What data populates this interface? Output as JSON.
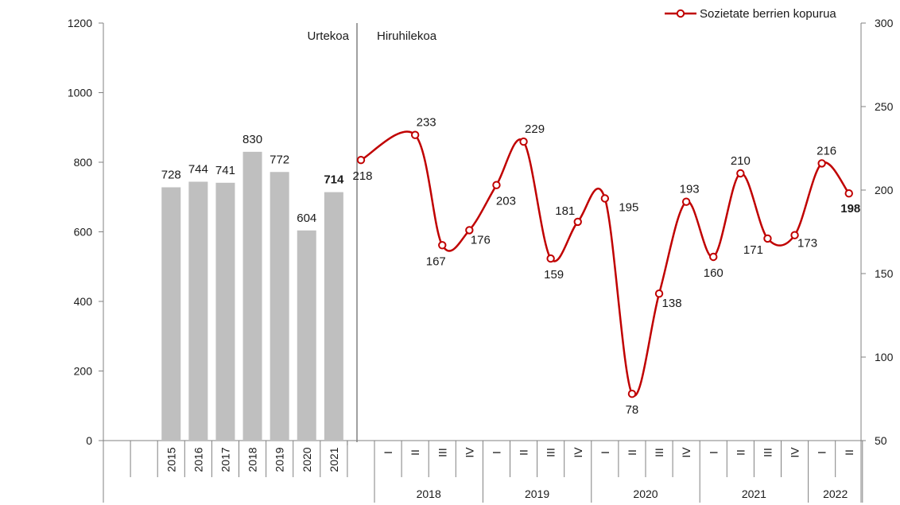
{
  "chart_data": {
    "type": "bar+line",
    "left_axis": {
      "ticks": [
        "0",
        "200",
        "400",
        "600",
        "800",
        "1000",
        "1200"
      ],
      "ylim": [
        0,
        1200
      ]
    },
    "right_axis": {
      "ticks": [
        "50",
        "100",
        "150",
        "200",
        "250",
        "300"
      ],
      "ylim": [
        50,
        300
      ]
    },
    "section_labels": {
      "annual": "Urtekoa",
      "quarterly": "Hiruhilekoa"
    },
    "bars": {
      "categories": [
        "2015",
        "2016",
        "2017",
        "2018",
        "2019",
        "2020",
        "2021"
      ],
      "values": [
        728,
        744,
        741,
        830,
        772,
        604,
        714
      ],
      "labels": [
        "728",
        "744",
        "741",
        "830",
        "772",
        "604",
        "714"
      ],
      "bold_last": true,
      "color": "#bfbfbf"
    },
    "line": {
      "name": "Sozietate berrien kopurua",
      "color": "#c00000",
      "quarters": [
        "I",
        "II",
        "III",
        "IV",
        "I",
        "II",
        "III",
        "IV",
        "I",
        "II",
        "III",
        "IV",
        "I",
        "II",
        "III",
        "IV",
        "I",
        "II"
      ],
      "years": [
        "2018",
        "2019",
        "2020",
        "2021",
        "2022"
      ],
      "values": [
        218,
        233,
        167,
        176,
        203,
        229,
        159,
        181,
        195,
        78,
        138,
        193,
        160,
        210,
        171,
        173,
        216,
        198
      ],
      "labels": [
        "218",
        "233",
        "167",
        "176",
        "203",
        "229",
        "159",
        "181",
        "195",
        "78",
        "138",
        "193",
        "160",
        "210",
        "171",
        "173",
        "216",
        "198"
      ],
      "bold_last": true
    },
    "legend": {
      "position": "top-right"
    },
    "grid": false
  }
}
